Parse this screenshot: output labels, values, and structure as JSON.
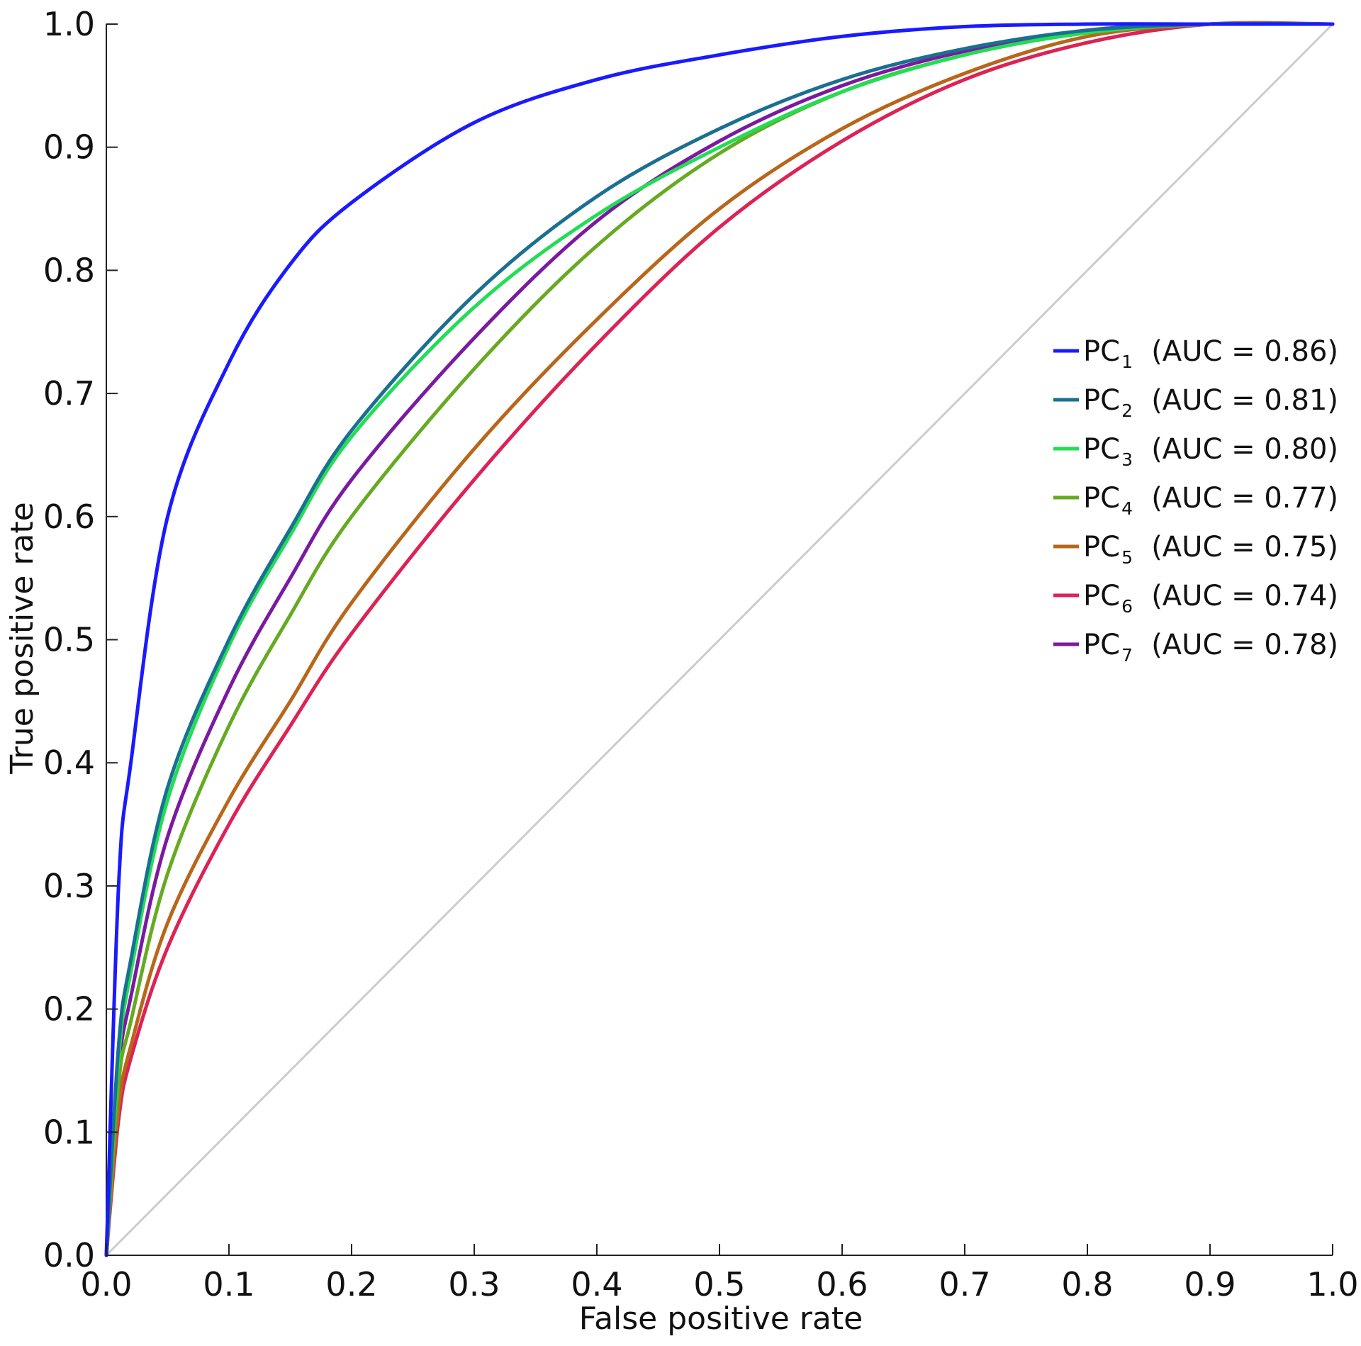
{
  "chart_data": {
    "type": "line",
    "title": "",
    "xlabel": "False positive rate",
    "ylabel": "True positive rate",
    "xlim": [
      0,
      1
    ],
    "ylim": [
      0,
      1
    ],
    "grid": false,
    "legend_position": "center-right",
    "x_ticks": [
      "0.0",
      "0.1",
      "0.2",
      "0.3",
      "0.4",
      "0.5",
      "0.6",
      "0.7",
      "0.8",
      "0.9",
      "1.0"
    ],
    "y_ticks": [
      "0.0",
      "0.1",
      "0.2",
      "0.3",
      "0.4",
      "0.5",
      "0.6",
      "0.7",
      "0.8",
      "0.9",
      "1.0"
    ],
    "x": [
      0,
      0.01,
      0.02,
      0.05,
      0.1,
      0.15,
      0.2,
      0.3,
      0.4,
      0.5,
      0.6,
      0.7,
      0.8,
      0.9,
      1.0
    ],
    "reference_line": {
      "name": "chance",
      "x": [
        0,
        1
      ],
      "y": [
        0,
        1
      ],
      "color": "#cccccc"
    },
    "series": [
      {
        "name": "PC",
        "sub": "1",
        "auc_text": "(AUC = 0.86)",
        "auc": 0.86,
        "color": "#1a1aff",
        "values": [
          0,
          0.3,
          0.4,
          0.6,
          0.725,
          0.805,
          0.855,
          0.92,
          0.955,
          0.975,
          0.99,
          0.998,
          1.0,
          1.0,
          1.0
        ]
      },
      {
        "name": "PC",
        "sub": "2",
        "auc_text": "(AUC = 0.81)",
        "auc": 0.81,
        "color": "#1a7090",
        "values": [
          0,
          0.17,
          0.24,
          0.38,
          0.5,
          0.59,
          0.67,
          0.78,
          0.86,
          0.915,
          0.955,
          0.98,
          0.995,
          1.0,
          1.0
        ]
      },
      {
        "name": "PC",
        "sub": "3",
        "auc_text": "(AUC = 0.80)",
        "auc": 0.8,
        "color": "#22dd55",
        "values": [
          0,
          0.16,
          0.23,
          0.37,
          0.495,
          0.585,
          0.665,
          0.77,
          0.845,
          0.9,
          0.945,
          0.975,
          0.993,
          1.0,
          1.0
        ]
      },
      {
        "name": "PC",
        "sub": "4",
        "auc_text": "(AUC = 0.77)",
        "auc": 0.77,
        "color": "#66aa22",
        "values": [
          0,
          0.14,
          0.19,
          0.31,
          0.43,
          0.52,
          0.6,
          0.72,
          0.82,
          0.895,
          0.945,
          0.975,
          0.993,
          1.0,
          1.0
        ]
      },
      {
        "name": "PC",
        "sub": "5",
        "auc_text": "(AUC = 0.75)",
        "auc": 0.75,
        "color": "#b8661a",
        "values": [
          0,
          0.12,
          0.17,
          0.27,
          0.37,
          0.45,
          0.53,
          0.655,
          0.76,
          0.85,
          0.915,
          0.96,
          0.99,
          1.0,
          1.0
        ]
      },
      {
        "name": "PC",
        "sub": "6",
        "auc_text": "(AUC = 0.74)",
        "auc": 0.74,
        "color": "#dd2255",
        "values": [
          0,
          0.11,
          0.16,
          0.25,
          0.35,
          0.43,
          0.505,
          0.63,
          0.74,
          0.835,
          0.905,
          0.955,
          0.985,
          1.0,
          1.0
        ]
      },
      {
        "name": "PC",
        "sub": "7",
        "auc_text": "(AUC = 0.78)",
        "auc": 0.78,
        "color": "#7a1aa0",
        "values": [
          0,
          0.15,
          0.21,
          0.34,
          0.46,
          0.55,
          0.63,
          0.745,
          0.84,
          0.905,
          0.95,
          0.978,
          0.995,
          1.0,
          1.0
        ]
      }
    ]
  }
}
